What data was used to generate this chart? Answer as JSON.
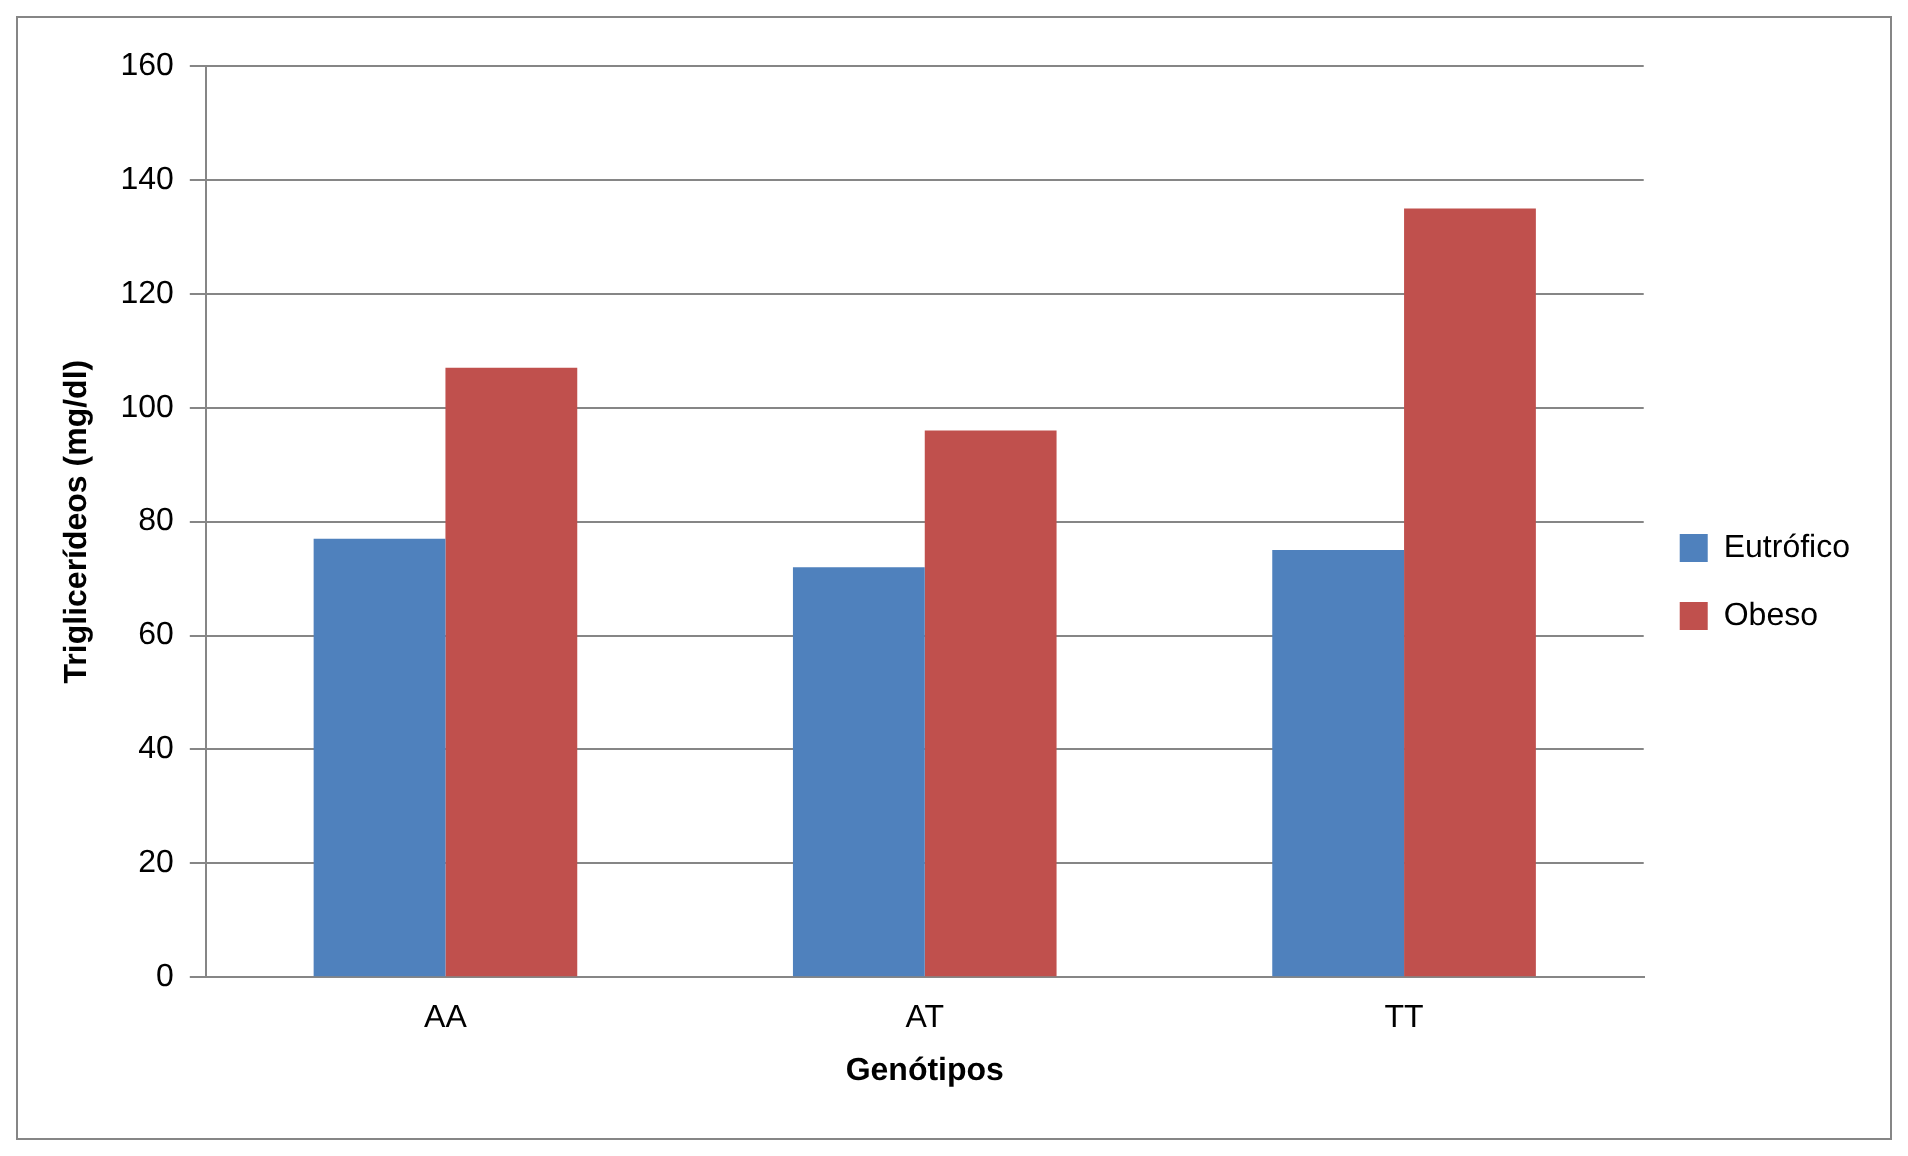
{
  "chart_data": {
    "type": "bar",
    "xlabel": "Genótipos",
    "ylabel": "Triglicerídeos (mg/dl)",
    "categories": [
      "AA",
      "AT",
      "TT"
    ],
    "series": [
      {
        "name": "Eutrófico",
        "color": "#4f81bd",
        "values": [
          77,
          72,
          75
        ]
      },
      {
        "name": "Obeso",
        "color": "#c0504d",
        "values": [
          107,
          96,
          135
        ]
      }
    ],
    "ylim": [
      0,
      160
    ],
    "yticks": [
      0,
      20,
      40,
      60,
      80,
      100,
      120,
      140,
      160
    ],
    "grid": "y",
    "legend": "right"
  }
}
